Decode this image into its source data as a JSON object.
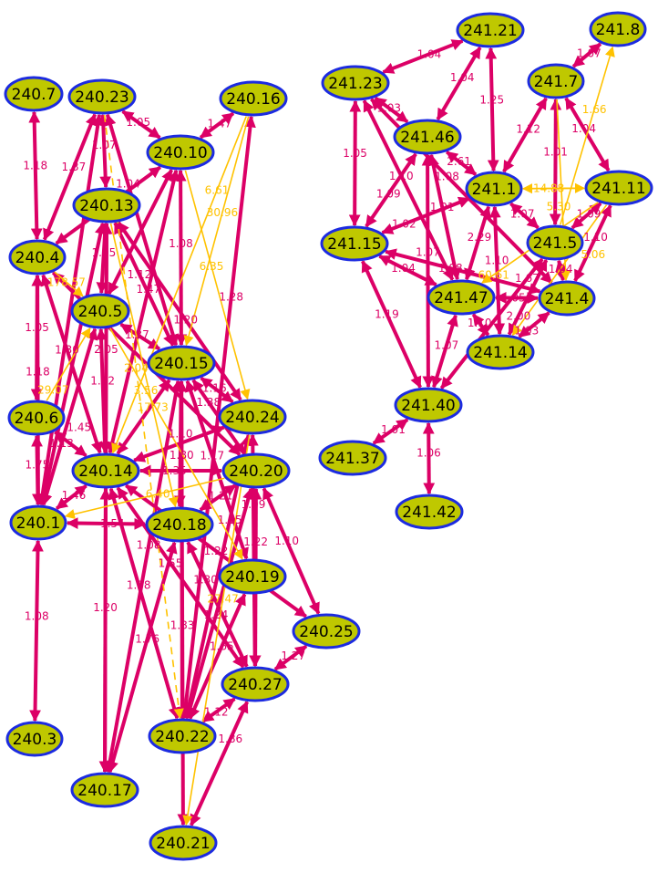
{
  "colors": {
    "node_fill": "#bfc800",
    "node_stroke": "#1c2be0",
    "edge_strong": "#dc0066",
    "edge_weak": "#ffc200"
  },
  "nodes": [
    "240.7",
    "240.23",
    "240.16",
    "240.10",
    "240.13",
    "240.4",
    "240.5",
    "240.15",
    "240.24",
    "240.6",
    "240.14",
    "240.20",
    "240.1",
    "240.18",
    "240.19",
    "240.25",
    "240.27",
    "240.3",
    "240.22",
    "240.17",
    "240.21",
    "241.21",
    "241.8",
    "241.23",
    "241.7",
    "241.46",
    "241.1",
    "241.11",
    "241.15",
    "241.5",
    "241.47",
    "241.4",
    "241.14",
    "241.40",
    "241.37",
    "241.42"
  ],
  "edges": [
    {
      "from": "240.7",
      "to": "240.4",
      "label": "1.18",
      "kind": "strong"
    },
    {
      "from": "240.23",
      "to": "240.4",
      "label": "1.37",
      "kind": "strong"
    },
    {
      "from": "240.23",
      "to": "240.10",
      "label": "1.05",
      "kind": "strong"
    },
    {
      "from": "240.23",
      "to": "240.13",
      "label": "1.07",
      "kind": "strong"
    },
    {
      "from": "240.23",
      "to": "240.15",
      "label": "1.04",
      "kind": "strong"
    },
    {
      "from": "240.23",
      "to": "240.1",
      "label": "",
      "kind": "strong"
    },
    {
      "from": "240.16",
      "to": "240.10",
      "label": "1.47",
      "kind": "strong"
    },
    {
      "from": "240.10",
      "to": "240.4",
      "label": "",
      "kind": "strong"
    },
    {
      "from": "240.10",
      "to": "240.14",
      "label": "1.47",
      "kind": "strong"
    },
    {
      "from": "240.10",
      "to": "240.15",
      "label": "1.08",
      "kind": "strong"
    },
    {
      "from": "240.10",
      "to": "240.5",
      "label": "",
      "kind": "strong"
    },
    {
      "from": "240.16",
      "to": "240.22",
      "label": "1.28",
      "kind": "strong"
    },
    {
      "from": "240.13",
      "to": "240.5",
      "label": "1.05",
      "kind": "strong"
    },
    {
      "from": "240.13",
      "to": "240.14",
      "label": "2.05",
      "kind": "strong"
    },
    {
      "from": "240.13",
      "to": "240.24",
      "label": "1.20",
      "kind": "strong"
    },
    {
      "from": "240.13",
      "to": "240.15",
      "label": "1.12",
      "kind": "strong"
    },
    {
      "from": "240.13",
      "to": "240.17",
      "label": "",
      "kind": "strong"
    },
    {
      "from": "240.13",
      "to": "240.1",
      "label": "",
      "kind": "strong"
    },
    {
      "from": "240.4",
      "to": "240.6",
      "label": "1.05",
      "kind": "strong"
    },
    {
      "from": "240.4",
      "to": "240.14",
      "label": "1.30",
      "kind": "strong"
    },
    {
      "from": "240.4",
      "to": "240.20",
      "label": "",
      "kind": "strong"
    },
    {
      "from": "240.5",
      "to": "240.15",
      "label": "1.37",
      "kind": "strong"
    },
    {
      "from": "240.5",
      "to": "240.14",
      "label": "1.12",
      "kind": "strong"
    },
    {
      "from": "240.5",
      "to": "240.1",
      "label": "1.13",
      "kind": "strong"
    },
    {
      "from": "240.6",
      "to": "240.1",
      "label": "1.75",
      "kind": "strong"
    },
    {
      "from": "240.6",
      "to": "240.14",
      "label": "1.45",
      "kind": "strong"
    },
    {
      "from": "240.4",
      "to": "240.1",
      "label": "1.18",
      "kind": "strong"
    },
    {
      "from": "240.14",
      "to": "240.1",
      "label": "1.46",
      "kind": "strong"
    },
    {
      "from": "240.18",
      "to": "240.1",
      "label": "1.54",
      "kind": "strong"
    },
    {
      "from": "240.1",
      "to": "240.3",
      "label": "1.08",
      "kind": "strong"
    },
    {
      "from": "240.14",
      "to": "240.17",
      "label": "1.20",
      "kind": "strong"
    },
    {
      "from": "240.14",
      "to": "240.22",
      "label": "1.38",
      "kind": "strong"
    },
    {
      "from": "240.14",
      "to": "240.27",
      "label": "1.55",
      "kind": "strong"
    },
    {
      "from": "240.14",
      "to": "240.25",
      "label": "1.22",
      "kind": "strong"
    },
    {
      "from": "240.14",
      "to": "240.20",
      "label": "1.35",
      "kind": "strong"
    },
    {
      "from": "240.15",
      "to": "240.24",
      "label": "1.16",
      "kind": "strong"
    },
    {
      "from": "240.15",
      "to": "240.18",
      "label": "1.10",
      "kind": "strong"
    },
    {
      "from": "240.15",
      "to": "240.21",
      "label": "1.83",
      "kind": "strong"
    },
    {
      "from": "240.15",
      "to": "240.20",
      "label": "1.38",
      "kind": "strong"
    },
    {
      "from": "240.15",
      "to": "240.19",
      "label": "1.17",
      "kind": "strong"
    },
    {
      "from": "240.15",
      "to": "240.14",
      "label": "",
      "kind": "strong"
    },
    {
      "from": "240.15",
      "to": "240.17",
      "label": "1.08",
      "kind": "strong"
    },
    {
      "from": "240.20",
      "to": "240.18",
      "label": "1.21",
      "kind": "strong"
    },
    {
      "from": "240.20",
      "to": "240.25",
      "label": "1.10",
      "kind": "strong"
    },
    {
      "from": "240.20",
      "to": "240.27",
      "label": "1.22",
      "kind": "strong"
    },
    {
      "from": "240.24",
      "to": "240.27",
      "label": "1.09",
      "kind": "strong"
    },
    {
      "from": "240.24",
      "to": "240.14",
      "label": "",
      "kind": "strong"
    },
    {
      "from": "240.18",
      "to": "240.27",
      "label": "1.30",
      "kind": "strong"
    },
    {
      "from": "240.22",
      "to": "240.27",
      "label": "1.12",
      "kind": "strong"
    },
    {
      "from": "240.27",
      "to": "240.21",
      "label": "1.86",
      "kind": "strong"
    },
    {
      "from": "240.25",
      "to": "240.27",
      "label": "1.27",
      "kind": "strong"
    },
    {
      "from": "240.18",
      "to": "240.17",
      "label": "1.76",
      "kind": "strong"
    },
    {
      "from": "240.24",
      "to": "240.22",
      "label": "1.15",
      "kind": "strong"
    },
    {
      "from": "240.19",
      "to": "240.22",
      "label": "1.65",
      "kind": "strong"
    },
    {
      "from": "240.15",
      "to": "240.22",
      "label": "1.80",
      "kind": "strong"
    },
    {
      "from": "240.20",
      "to": "240.22",
      "label": "1.24",
      "kind": "strong"
    },
    {
      "from": "240.4",
      "to": "240.5",
      "label": "178.57",
      "kind": "weak"
    },
    {
      "from": "240.6",
      "to": "240.5",
      "label": "29.07",
      "kind": "weak"
    },
    {
      "from": "240.23",
      "to": "240.22",
      "label": "2.04",
      "kind": "weak",
      "dashed": true
    },
    {
      "from": "240.10",
      "to": "240.24",
      "label": "6.35",
      "kind": "weak"
    },
    {
      "from": "240.16",
      "to": "240.15",
      "label": "30.96",
      "kind": "weak"
    },
    {
      "from": "240.16",
      "to": "240.14",
      "label": "6.61",
      "kind": "weak"
    },
    {
      "from": "240.13",
      "to": "240.18",
      "label": "17.73",
      "kind": "weak"
    },
    {
      "from": "240.20",
      "to": "240.1",
      "label": "6.40",
      "kind": "weak"
    },
    {
      "from": "240.24",
      "to": "240.21",
      "label": "27.47",
      "kind": "weak"
    },
    {
      "from": "240.5",
      "to": "240.19",
      "label": "3.56",
      "kind": "weak"
    },
    {
      "from": "241.21",
      "to": "241.23",
      "label": "1.04",
      "kind": "strong"
    },
    {
      "from": "241.21",
      "to": "241.46",
      "label": "1.04",
      "kind": "strong"
    },
    {
      "from": "241.21",
      "to": "241.1",
      "label": "1.25",
      "kind": "strong"
    },
    {
      "from": "241.8",
      "to": "241.7",
      "label": "1.07",
      "kind": "strong"
    },
    {
      "from": "241.23",
      "to": "241.15",
      "label": "1.05",
      "kind": "strong"
    },
    {
      "from": "241.23",
      "to": "241.46",
      "label": "1.03",
      "kind": "strong"
    },
    {
      "from": "241.23",
      "to": "241.47",
      "label": "1.10",
      "kind": "strong"
    },
    {
      "from": "241.23",
      "to": "241.4",
      "label": "1.08",
      "kind": "strong"
    },
    {
      "from": "241.46",
      "to": "241.1",
      "label": "2.61",
      "kind": "strong"
    },
    {
      "from": "241.46",
      "to": "241.15",
      "label": "1.09",
      "kind": "strong"
    },
    {
      "from": "241.46",
      "to": "241.47",
      "label": "1.01",
      "kind": "strong"
    },
    {
      "from": "241.46",
      "to": "241.40",
      "label": "1.07",
      "kind": "strong"
    },
    {
      "from": "241.7",
      "to": "241.1",
      "label": "1.12",
      "kind": "strong"
    },
    {
      "from": "241.7",
      "to": "241.5",
      "label": "1.01",
      "kind": "strong"
    },
    {
      "from": "241.7",
      "to": "241.11",
      "label": "1.04",
      "kind": "strong"
    },
    {
      "from": "241.1",
      "to": "241.15",
      "label": "1.02",
      "kind": "strong"
    },
    {
      "from": "241.1",
      "to": "241.47",
      "label": "2.29",
      "kind": "strong"
    },
    {
      "from": "241.1",
      "to": "241.14",
      "label": "1.10",
      "kind": "strong"
    },
    {
      "from": "241.1",
      "to": "241.5",
      "label": "1.07",
      "kind": "strong"
    },
    {
      "from": "241.11",
      "to": "241.5",
      "label": "1.09",
      "kind": "strong"
    },
    {
      "from": "241.11",
      "to": "241.4",
      "label": "1.10",
      "kind": "strong"
    },
    {
      "from": "241.15",
      "to": "241.4",
      "label": "1.08",
      "kind": "strong"
    },
    {
      "from": "241.15",
      "to": "241.47",
      "label": "1.04",
      "kind": "strong"
    },
    {
      "from": "241.15",
      "to": "241.40",
      "label": "1.19",
      "kind": "strong"
    },
    {
      "from": "241.47",
      "to": "241.4",
      "label": "1.05",
      "kind": "strong"
    },
    {
      "from": "241.47",
      "to": "241.40",
      "label": "1.07",
      "kind": "strong"
    },
    {
      "from": "241.47",
      "to": "241.14",
      "label": "1.10",
      "kind": "strong"
    },
    {
      "from": "241.5",
      "to": "241.4",
      "label": "1.04",
      "kind": "strong"
    },
    {
      "from": "241.5",
      "to": "241.14",
      "label": "2.00",
      "kind": "strong"
    },
    {
      "from": "241.5",
      "to": "241.40",
      "label": "1.67",
      "kind": "strong"
    },
    {
      "from": "241.4",
      "to": "241.14",
      "label": "1.03",
      "kind": "strong"
    },
    {
      "from": "241.40",
      "to": "241.37",
      "label": "1.01",
      "kind": "strong"
    },
    {
      "from": "241.40",
      "to": "241.42",
      "label": "1.06",
      "kind": "strong"
    },
    {
      "from": "241.1",
      "to": "241.11",
      "label": "14.88",
      "kind": "weak"
    },
    {
      "from": "241.11",
      "to": "241.1",
      "label": "5.30",
      "kind": "weak"
    },
    {
      "from": "241.5",
      "to": "241.8",
      "label": "1.66",
      "kind": "weak"
    },
    {
      "from": "241.7",
      "to": "241.4",
      "label": "",
      "kind": "weak"
    },
    {
      "from": "241.11",
      "to": "241.47",
      "label": "60.61",
      "kind": "weak"
    },
    {
      "from": "241.11",
      "to": "241.14",
      "label": "5.06",
      "kind": "weak"
    }
  ]
}
